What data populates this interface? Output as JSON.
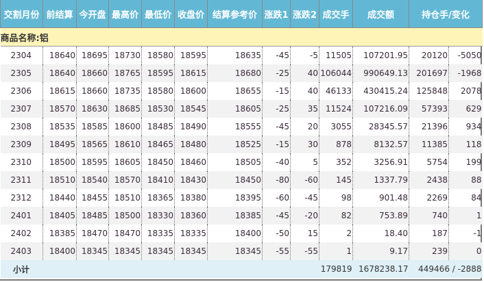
{
  "headers": [
    "交割月份",
    "前结算",
    "今开盘",
    "最高价",
    "最低价",
    "收盘价",
    "结算参考价",
    "涨跌1",
    "涨跌2",
    "成交手",
    "成交额",
    "持仓手/变化"
  ],
  "commodity_label": "商品名称:铝",
  "rows": [
    [
      "2304",
      "18640",
      "18695",
      "18730",
      "18580",
      "18595",
      "18635",
      "-45",
      "-5",
      "11505",
      "107201.95",
      "20120",
      "-5050"
    ],
    [
      "2305",
      "18640",
      "18660",
      "18765",
      "18595",
      "18615",
      "18680",
      "-25",
      "40",
      "106044",
      "990649.13",
      "201697",
      "-1968"
    ],
    [
      "2306",
      "18615",
      "18660",
      "18735",
      "18580",
      "18600",
      "18655",
      "-15",
      "40",
      "46133",
      "430415.24",
      "125848",
      "2078"
    ],
    [
      "2307",
      "18570",
      "18630",
      "18685",
      "18530",
      "18545",
      "18605",
      "-25",
      "35",
      "11524",
      "107216.09",
      "57393",
      "629"
    ],
    [
      "2308",
      "18535",
      "18585",
      "18600",
      "18485",
      "18490",
      "18555",
      "-45",
      "20",
      "3055",
      "28345.57",
      "21396",
      "934"
    ],
    [
      "2309",
      "18495",
      "18565",
      "18610",
      "18465",
      "18480",
      "18525",
      "-15",
      "30",
      "878",
      "8132.57",
      "11385",
      "118"
    ],
    [
      "2310",
      "18500",
      "18595",
      "18605",
      "18450",
      "18460",
      "18505",
      "-40",
      "5",
      "352",
      "3256.91",
      "5754",
      "199"
    ],
    [
      "2311",
      "18510",
      "18540",
      "18570",
      "18410",
      "18430",
      "18450",
      "-80",
      "-60",
      "145",
      "1337.79",
      "2438",
      "88"
    ],
    [
      "2312",
      "18440",
      "18455",
      "18510",
      "18365",
      "18380",
      "18395",
      "-60",
      "-45",
      "98",
      "901.48",
      "2269",
      "84"
    ],
    [
      "2401",
      "18405",
      "18485",
      "18500",
      "18330",
      "18360",
      "18385",
      "-45",
      "-20",
      "82",
      "753.89",
      "740",
      "1"
    ],
    [
      "2402",
      "18385",
      "18470",
      "18470",
      "18335",
      "18335",
      "18400",
      "-50",
      "15",
      "2",
      "18.40",
      "187",
      "-1"
    ],
    [
      "2403",
      "18400",
      "18345",
      "18345",
      "18345",
      "18345",
      "18345",
      "-55",
      "-55",
      "1",
      "9.17",
      "239",
      "0"
    ]
  ],
  "total": {
    "label": "小计",
    "volume": "179819",
    "turnover": "1678238.17",
    "open_interest": "449466 / -2888"
  }
}
